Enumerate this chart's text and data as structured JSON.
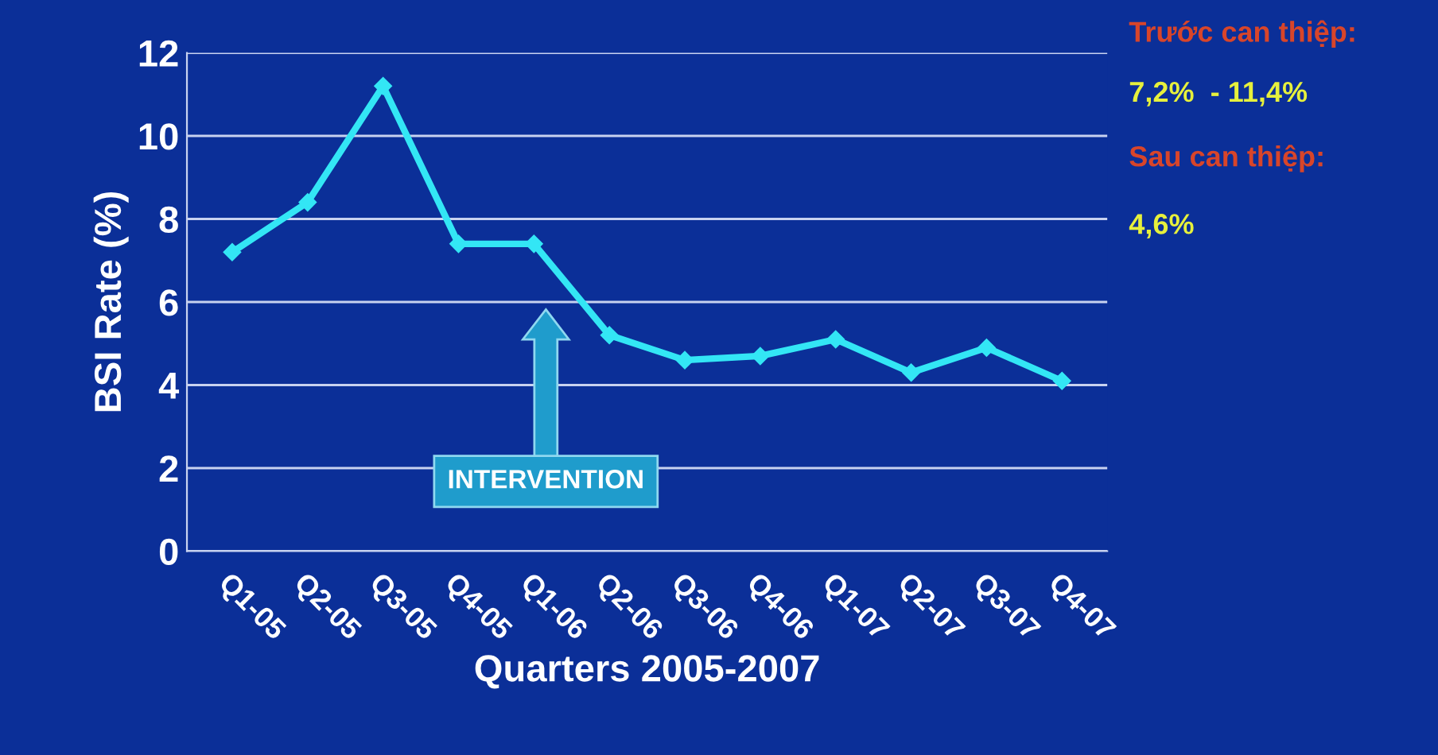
{
  "chart_data": {
    "type": "line",
    "xlabel": "Quarters 2005-2007",
    "ylabel": "BSI Rate (%)",
    "categories": [
      "Q1-05",
      "Q2-05",
      "Q3-05",
      "Q4-05",
      "Q1-06",
      "Q2-06",
      "Q3-06",
      "Q4-06",
      "Q1-07",
      "Q2-07",
      "Q3-07",
      "Q4-07"
    ],
    "series": [
      {
        "color": "#33e6f5",
        "values": [
          7.2,
          8.4,
          11.2,
          7.4,
          7.4,
          5.2,
          4.6,
          4.7,
          5.1,
          4.3,
          4.9,
          4.1
        ]
      }
    ],
    "ylim": [
      0,
      12
    ],
    "yticks": [
      0,
      2,
      4,
      6,
      8,
      10,
      12
    ],
    "grid": "y",
    "marker": "diamond",
    "line_style": "solid",
    "annotations": [
      "INTERVENTION",
      "Trước can thiệp:",
      "7,2%  - 11,4%",
      "Sau can thiệp:",
      "4,6%"
    ]
  }
}
